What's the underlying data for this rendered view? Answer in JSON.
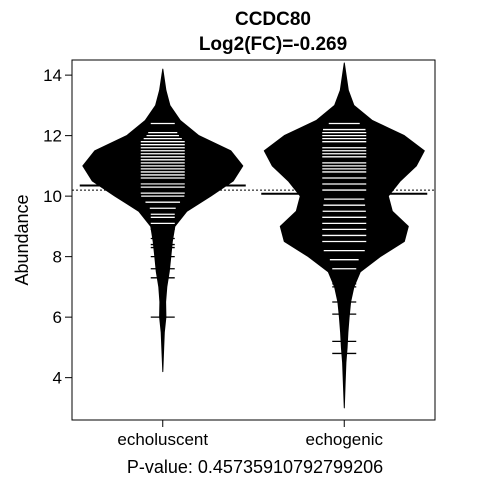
{
  "chart_data": {
    "type": "beanplot",
    "title": "CCDC80",
    "subtitle": "Log2(FC)=-0.269",
    "ylabel": "Abundance",
    "xlabel": "P-value: 0.45735910792799206",
    "ylim": [
      2.6,
      14.5
    ],
    "yticks": [
      4,
      6,
      8,
      10,
      12,
      14
    ],
    "overall_mean": 10.2,
    "categories": [
      "echoluscent",
      "echogenic"
    ],
    "series": [
      {
        "name": "echoluscent",
        "mean": 10.35,
        "density": [
          [
            4.2,
            0.0
          ],
          [
            5.0,
            0.012
          ],
          [
            5.5,
            0.02
          ],
          [
            6.0,
            0.04
          ],
          [
            6.5,
            0.035
          ],
          [
            7.0,
            0.05
          ],
          [
            7.5,
            0.08
          ],
          [
            8.0,
            0.1
          ],
          [
            8.5,
            0.12
          ],
          [
            9.0,
            0.15
          ],
          [
            9.5,
            0.3
          ],
          [
            10.0,
            0.6
          ],
          [
            10.5,
            0.88
          ],
          [
            11.0,
            1.0
          ],
          [
            11.5,
            0.85
          ],
          [
            12.0,
            0.45
          ],
          [
            12.5,
            0.22
          ],
          [
            13.0,
            0.09
          ],
          [
            13.5,
            0.04
          ],
          [
            14.2,
            0.0
          ]
        ],
        "points": [
          6.0,
          7.3,
          7.6,
          8.0,
          8.3,
          8.4,
          8.6,
          8.9,
          9.1,
          9.3,
          9.4,
          9.6,
          9.8,
          10.0,
          10.1,
          10.3,
          10.4,
          10.6,
          10.7,
          10.8,
          10.9,
          11.0,
          11.1,
          11.2,
          11.3,
          11.4,
          11.5,
          11.6,
          11.7,
          11.8,
          11.9,
          12.0,
          12.1,
          12.4
        ]
      },
      {
        "name": "echogenic",
        "mean": 10.08,
        "density": [
          [
            3.0,
            0.0
          ],
          [
            3.8,
            0.01
          ],
          [
            4.5,
            0.02
          ],
          [
            5.0,
            0.035
          ],
          [
            5.5,
            0.045
          ],
          [
            6.0,
            0.06
          ],
          [
            6.5,
            0.08
          ],
          [
            7.0,
            0.12
          ],
          [
            7.5,
            0.2
          ],
          [
            8.0,
            0.45
          ],
          [
            8.5,
            0.75
          ],
          [
            9.0,
            0.8
          ],
          [
            9.5,
            0.6
          ],
          [
            10.0,
            0.55
          ],
          [
            10.5,
            0.7
          ],
          [
            11.0,
            0.9
          ],
          [
            11.5,
            1.0
          ],
          [
            12.0,
            0.75
          ],
          [
            12.5,
            0.35
          ],
          [
            13.0,
            0.12
          ],
          [
            13.5,
            0.05
          ],
          [
            14.4,
            0.0
          ]
        ],
        "points": [
          4.8,
          5.2,
          6.1,
          6.5,
          7.0,
          7.1,
          7.6,
          7.9,
          8.2,
          8.5,
          8.7,
          8.9,
          9.1,
          9.3,
          9.5,
          9.7,
          9.9,
          10.2,
          10.4,
          10.6,
          10.8,
          10.9,
          11.0,
          11.1,
          11.3,
          11.4,
          11.5,
          11.6,
          11.8,
          11.9,
          12.0,
          12.1,
          12.2,
          12.4
        ]
      }
    ],
    "colors": {
      "bean": "#000000",
      "lines": "#ffffff",
      "frame": "#000000"
    }
  }
}
